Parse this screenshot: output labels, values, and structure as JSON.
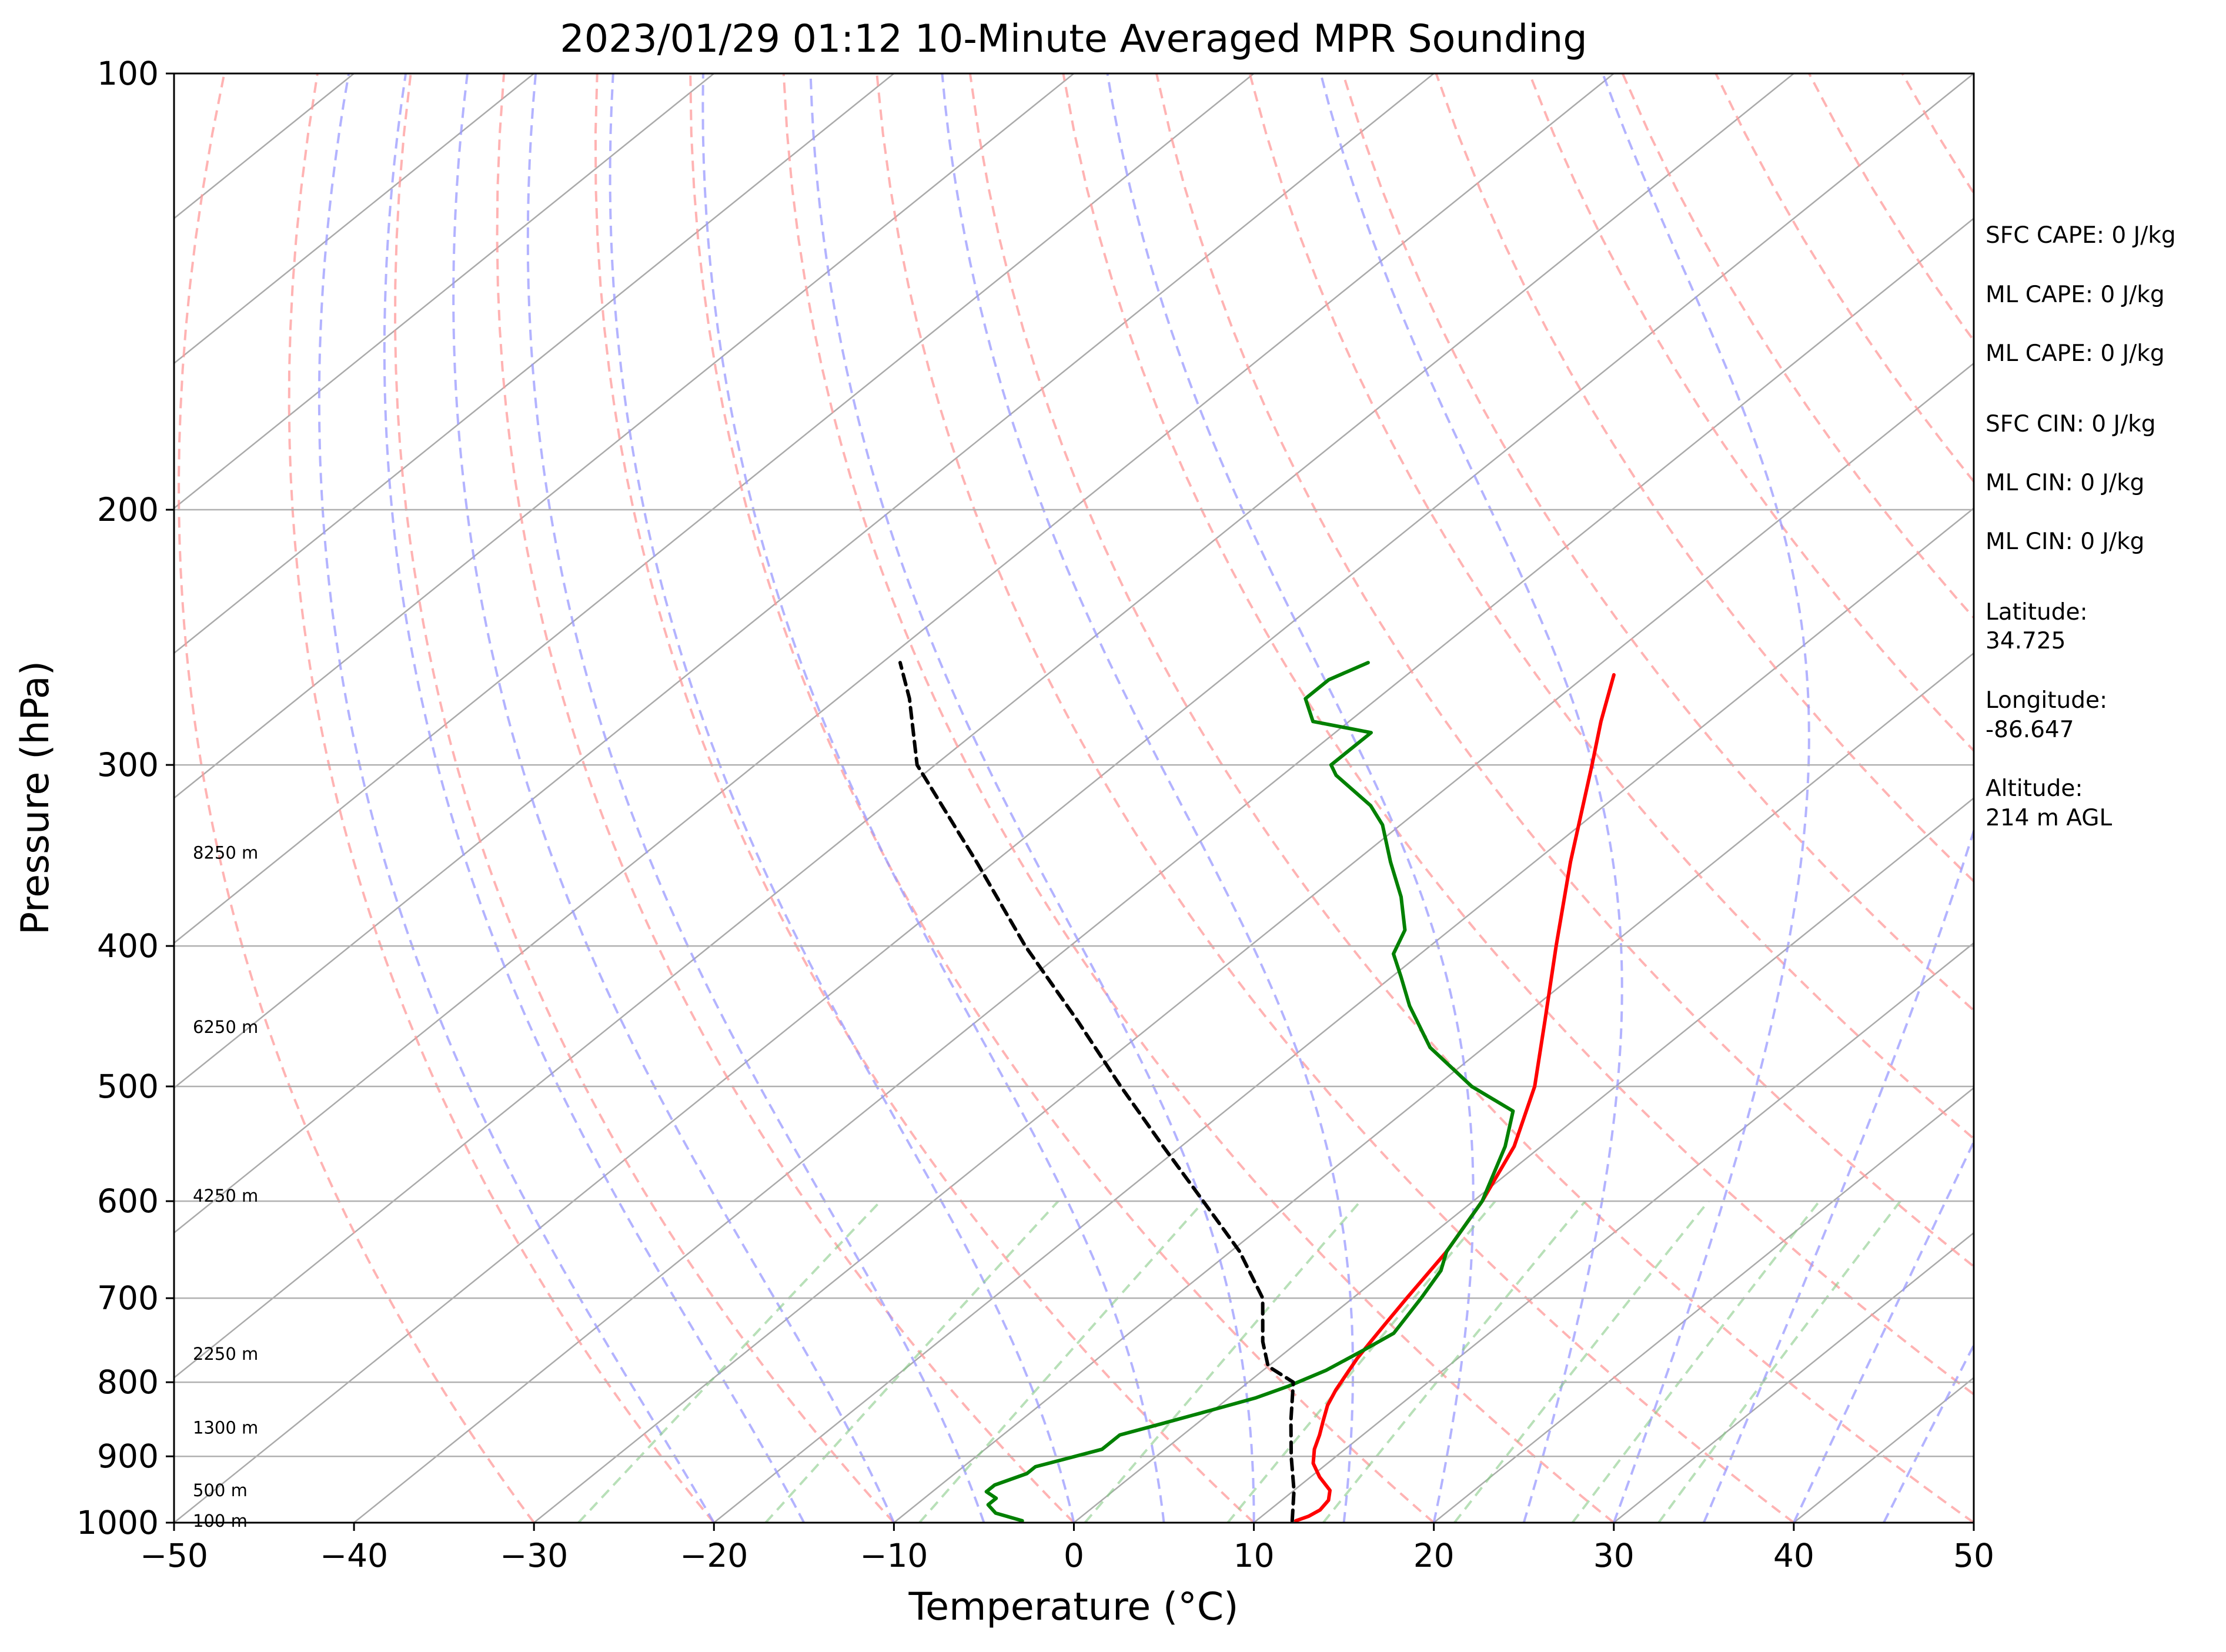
{
  "chart_data": {
    "type": "line",
    "title": "2023/01/29 01:12 10-Minute Averaged MPR Sounding",
    "xlabel": "Temperature (°C)",
    "ylabel": "Pressure (hPa)",
    "xlim": [
      -50,
      50
    ],
    "ylim": [
      1000,
      100
    ],
    "y_scale": "log",
    "skew": true,
    "x_ticks": [
      "−50",
      "−40",
      "−30",
      "−20",
      "−10",
      "0",
      "10",
      "20",
      "30",
      "40",
      "50"
    ],
    "y_ticks": [
      "100",
      "200",
      "300",
      "400",
      "500",
      "600",
      "700",
      "800",
      "900",
      "1000"
    ],
    "height_labels": [
      {
        "text": "100 m",
        "p": 997
      },
      {
        "text": "500 m",
        "p": 950
      },
      {
        "text": "1300 m",
        "p": 860
      },
      {
        "text": "2250 m",
        "p": 765
      },
      {
        "text": "4250 m",
        "p": 595
      },
      {
        "text": "6250 m",
        "p": 455
      },
      {
        "text": "8250 m",
        "p": 345
      }
    ],
    "series": [
      {
        "role": "temperature",
        "color": "#ff0000",
        "points": [
          [
            997,
            12.2
          ],
          [
            990,
            12.6
          ],
          [
            980,
            12.8
          ],
          [
            965,
            12.6
          ],
          [
            950,
            12.0
          ],
          [
            930,
            10.5
          ],
          [
            910,
            9.2
          ],
          [
            890,
            8.3
          ],
          [
            870,
            7.6
          ],
          [
            850,
            6.8
          ],
          [
            830,
            6.0
          ],
          [
            810,
            5.4
          ],
          [
            790,
            4.9
          ],
          [
            770,
            4.4
          ],
          [
            750,
            4.0
          ],
          [
            730,
            3.6
          ],
          [
            700,
            3.0
          ],
          [
            650,
            2.0
          ],
          [
            600,
            0.5
          ],
          [
            550,
            -1.5
          ],
          [
            500,
            -4.5
          ],
          [
            450,
            -8.5
          ],
          [
            400,
            -13.0
          ],
          [
            350,
            -18.0
          ],
          [
            300,
            -23.5
          ],
          [
            280,
            -26.0
          ],
          [
            260,
            -28.5
          ]
        ]
      },
      {
        "role": "dewpoint",
        "color": "#008000",
        "points": [
          [
            997,
            -3.0
          ],
          [
            985,
            -5.0
          ],
          [
            972,
            -6.0
          ],
          [
            962,
            -6.0
          ],
          [
            952,
            -7.0
          ],
          [
            942,
            -7.0
          ],
          [
            925,
            -6.0
          ],
          [
            915,
            -6.0
          ],
          [
            905,
            -5.0
          ],
          [
            890,
            -3.5
          ],
          [
            870,
            -3.5
          ],
          [
            855,
            -2.0
          ],
          [
            835,
            0.0
          ],
          [
            820,
            1.5
          ],
          [
            805,
            2.5
          ],
          [
            785,
            3.5
          ],
          [
            760,
            4.2
          ],
          [
            740,
            4.7
          ],
          [
            700,
            3.8
          ],
          [
            670,
            3.0
          ],
          [
            650,
            2.0
          ],
          [
            600,
            0.5
          ],
          [
            550,
            -2.0
          ],
          [
            520,
            -4.0
          ],
          [
            500,
            -8.0
          ],
          [
            470,
            -13.0
          ],
          [
            440,
            -17.0
          ],
          [
            420,
            -19.5
          ],
          [
            405,
            -21.5
          ],
          [
            390,
            -22.5
          ],
          [
            370,
            -25.0
          ],
          [
            350,
            -28.0
          ],
          [
            330,
            -31.0
          ],
          [
            320,
            -33.0
          ],
          [
            305,
            -37.0
          ],
          [
            300,
            -38.0
          ],
          [
            290,
            -38.0
          ],
          [
            285,
            -38.0
          ],
          [
            280,
            -42.0
          ],
          [
            270,
            -44.0
          ],
          [
            262,
            -44.0
          ],
          [
            255,
            -43.0
          ]
        ]
      },
      {
        "role": "parcel",
        "color": "#000000",
        "style": "dashed",
        "points": [
          [
            997,
            12.0
          ],
          [
            950,
            10.0
          ],
          [
            900,
            7.5
          ],
          [
            850,
            5.0
          ],
          [
            800,
            2.5
          ],
          [
            780,
            0.0
          ],
          [
            750,
            -2.0
          ],
          [
            700,
            -5.0
          ],
          [
            650,
            -9.5
          ],
          [
            600,
            -15.0
          ],
          [
            550,
            -21.0
          ],
          [
            500,
            -27.5
          ],
          [
            450,
            -34.5
          ],
          [
            400,
            -42.5
          ],
          [
            350,
            -51.0
          ],
          [
            300,
            -61.0
          ],
          [
            270,
            -66.0
          ],
          [
            255,
            -69.0
          ]
        ]
      }
    ],
    "background_lines": {
      "isotherms_c": [
        -150,
        -140,
        -130,
        -120,
        -110,
        -100,
        -90,
        -80,
        -70,
        -60,
        -50,
        -40,
        -30,
        -20,
        -10,
        0,
        10,
        20,
        30,
        40,
        50
      ],
      "dry_adiabats_c": [
        -30,
        -20,
        -10,
        0,
        10,
        20,
        30,
        40,
        50,
        60,
        70,
        80,
        90,
        100,
        110,
        120,
        130,
        140,
        150
      ],
      "moist_adiabats_c": [
        -20,
        -15,
        -10,
        -5,
        0,
        5,
        10,
        15,
        20,
        25,
        30,
        35,
        40,
        45
      ],
      "mixing_ratios_gkg": [
        0.4,
        1,
        2,
        4,
        7,
        10,
        16,
        24,
        32
      ]
    },
    "grid": true
  },
  "info_panel": {
    "sfc_cape": "SFC CAPE: 0 J/kg",
    "ml_cape_1": "ML CAPE: 0 J/kg",
    "ml_cape_2": "ML CAPE: 0 J/kg",
    "sfc_cin": "SFC CIN: 0 J/kg",
    "ml_cin_1": "ML CIN: 0 J/kg",
    "ml_cin_2": "ML CIN: 0 J/kg",
    "latitude_label": "Latitude:",
    "latitude_value": "34.725",
    "longitude_label": "Longitude:",
    "longitude_value": "-86.647",
    "altitude_label": "Altitude:",
    "altitude_value": "214 m AGL"
  },
  "colors": {
    "temperature": "#ff0000",
    "dewpoint": "#008000",
    "parcel": "#000000",
    "isotherm": "#aaaaaa",
    "dry_adiabat": "#ff9999",
    "moist_adiabat": "#9999ff",
    "mixing_ratio": "#88cc88"
  }
}
